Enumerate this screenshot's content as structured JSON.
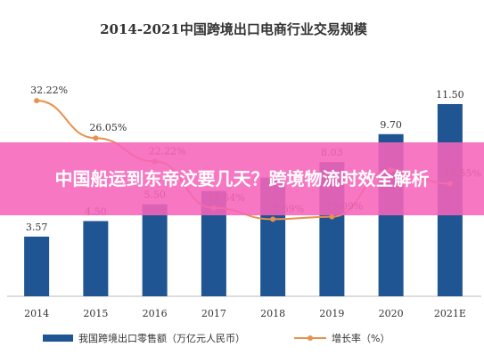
{
  "overlay": {
    "text": "中国船运到东帝汶要几天？跨境物流时效全解析"
  },
  "chart_data": {
    "type": "bar",
    "title": "2014-2021中国跨境出口电商行业交易规模",
    "categories": [
      "2014",
      "2015",
      "2016",
      "2017",
      "2018",
      "2019",
      "2020",
      "2021E"
    ],
    "series": [
      {
        "name": "我国跨境出口零售额（万亿元人民币）",
        "type": "bar",
        "values": [
          3.57,
          4.5,
          5.5,
          6.3,
          7.1,
          8.03,
          9.7,
          11.5
        ],
        "value_labels": [
          "3.57",
          "4.50",
          "5.50",
          "",
          "",
          "8.03",
          "9.70",
          "11.50"
        ],
        "color": "#1f5592"
      },
      {
        "name": "增长率（%）",
        "type": "line",
        "values": [
          32.22,
          26.05,
          22.22,
          14.54,
          12.69,
          13.09,
          20.8,
          18.55
        ],
        "value_labels": [
          "32.22%",
          "26.05%",
          "22.22%",
          "14.54%",
          "12.69%",
          "13.09%",
          "",
          "18.55%"
        ],
        "color": "#e8914d"
      }
    ],
    "ylim_bar": [
      0,
      14
    ],
    "ylim_rate": [
      0,
      40
    ],
    "grid": false,
    "legend_position": "bottom"
  }
}
